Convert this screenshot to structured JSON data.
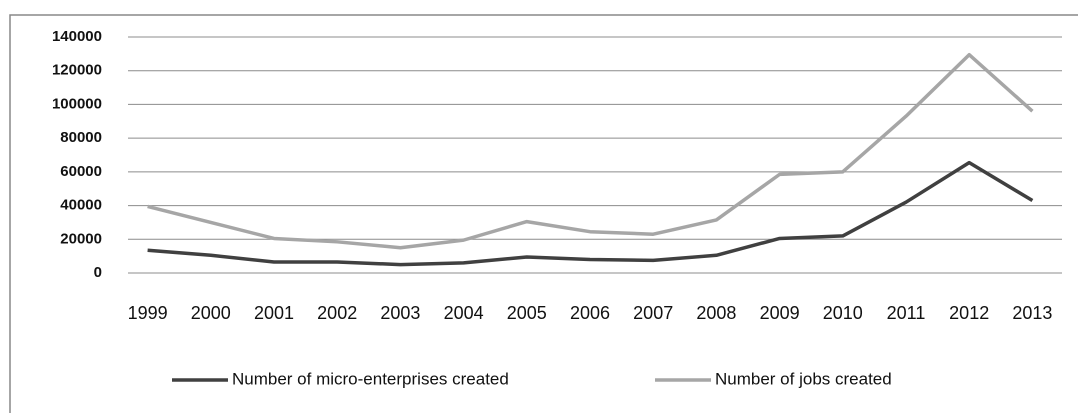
{
  "chart_data": {
    "type": "line",
    "categories": [
      "1999",
      "2000",
      "2001",
      "2002",
      "2003",
      "2004",
      "2005",
      "2006",
      "2007",
      "2008",
      "2009",
      "2010",
      "2011",
      "2012",
      "2013"
    ],
    "series": [
      {
        "name": "Number of micro-enterprises created",
        "color": "#404040",
        "values": [
          13500,
          10500,
          6500,
          6500,
          5000,
          6000,
          9500,
          8000,
          7500,
          10500,
          20500,
          22000,
          42000,
          65500,
          43000
        ]
      },
      {
        "name": "Number of jobs created",
        "color": "#a6a6a6",
        "values": [
          39500,
          30000,
          20500,
          18500,
          15000,
          19500,
          30500,
          24500,
          23000,
          31500,
          58500,
          60000,
          93000,
          129500,
          96000
        ]
      }
    ],
    "ylim": [
      0,
      140000
    ],
    "yticks": [
      0,
      20000,
      40000,
      60000,
      80000,
      100000,
      120000,
      140000
    ],
    "grid": true,
    "legend": "bottom"
  }
}
